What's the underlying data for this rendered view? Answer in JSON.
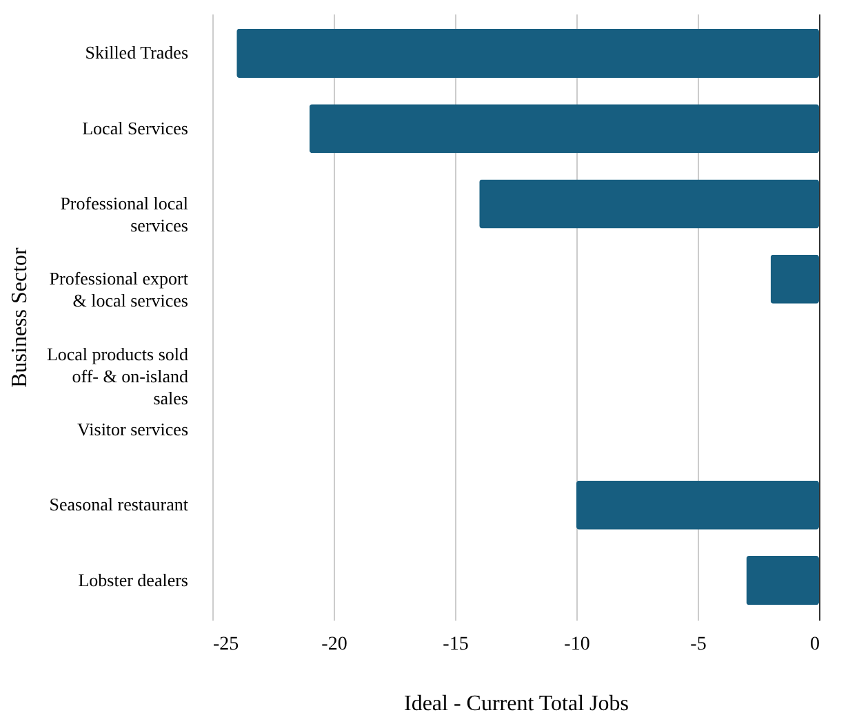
{
  "chart_data": {
    "type": "bar",
    "orientation": "horizontal",
    "xlabel": "Ideal - Current Total Jobs",
    "ylabel": "Business Sector",
    "categories": [
      "Skilled Trades",
      "Local Services",
      "Professional local\nservices",
      "Professional export\n& local services",
      "Local products sold\noff- & on-island\nsales",
      "Visitor services",
      "Seasonal restaurant",
      "Lobster dealers"
    ],
    "values": [
      -24,
      -21,
      -14,
      -2,
      0,
      0,
      -10,
      -3
    ],
    "color": "#175e80",
    "xlim": [
      -25,
      0
    ],
    "xticks": [
      -25,
      -20,
      -15,
      -10,
      -5,
      0
    ],
    "grid": "x"
  }
}
